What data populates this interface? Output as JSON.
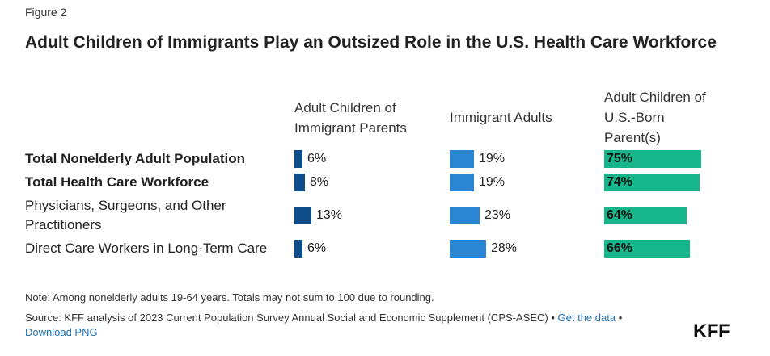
{
  "figure_label": "Figure 2",
  "title": "Adult Children of Immigrants Play an Outsized Role in the U.S. Health Care Workforce",
  "colors": {
    "children_of_immigrants": "#0f4c8a",
    "immigrant_adults": "#2a85d4",
    "us_born": "#16b58a"
  },
  "chart_data": {
    "type": "bar",
    "orientation": "horizontal",
    "categories": [
      "Total Nonelderly Adult Population",
      "Total Health Care Workforce",
      "Physicians, Surgeons, and Other Practitioners",
      "Direct Care Workers in Long-Term Care"
    ],
    "bold_categories": [
      true,
      true,
      false,
      false
    ],
    "unit": "%",
    "series": [
      {
        "name": "Adult Children of\nImmigrant Parents",
        "values": [
          6,
          8,
          13,
          6
        ],
        "labels": [
          "6%",
          "8%",
          "13%",
          "6%"
        ]
      },
      {
        "name": "Immigrant Adults",
        "values": [
          19,
          19,
          23,
          28
        ],
        "labels": [
          "19%",
          "19%",
          "23%",
          "28%"
        ]
      },
      {
        "name": "Adult Children of\nU.S.-Born\nParent(s)",
        "values": [
          75,
          74,
          64,
          66
        ],
        "labels": [
          "75%",
          "74%",
          "64%",
          "66%"
        ]
      }
    ]
  },
  "footer": {
    "note": "Note: Among nonelderly adults 19-64 years. Totals may not sum to 100 due to rounding.",
    "source": "Source: KFF analysis of 2023 Current Population Survey Annual Social and Economic Supplement (CPS-ASEC) •",
    "get_data_link": "Get the data",
    "separator": "•",
    "download_link": "Download PNG",
    "logo_text": "KFF"
  }
}
